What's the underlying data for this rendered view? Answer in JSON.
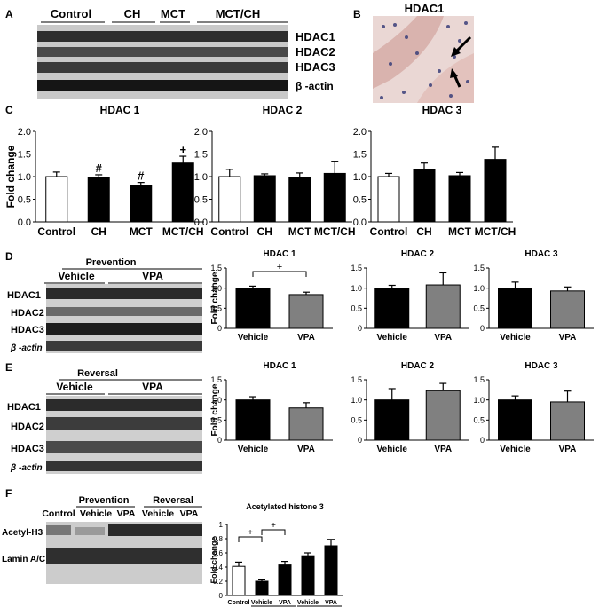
{
  "panels": {
    "A": {
      "letter": "A",
      "groups": [
        "Control",
        "CH",
        "MCT",
        "MCT/CH"
      ],
      "bands": [
        "HDAC1",
        "HDAC2",
        "HDAC3",
        "β -actin"
      ]
    },
    "B": {
      "letter": "B",
      "title": "HDAC1"
    },
    "C": {
      "letter": "C"
    },
    "D": {
      "letter": "D",
      "group_header": "Prevention",
      "groups": [
        "Vehicle",
        "VPA"
      ],
      "bands": [
        "HDAC1",
        "HDAC2",
        "HDAC3",
        "β -actin"
      ]
    },
    "E": {
      "letter": "E",
      "group_header": "Reversal",
      "groups": [
        "Vehicle",
        "VPA"
      ],
      "bands": [
        "HDAC1",
        "HDAC2",
        "HDAC3",
        "β -actin"
      ]
    },
    "F": {
      "letter": "F",
      "headers": [
        "Prevention",
        "Reversal"
      ],
      "lanes": [
        "Control",
        "Vehicle",
        "VPA",
        "Vehicle",
        "VPA"
      ],
      "bands": [
        "Acetyl-H3",
        "Lamin A/C"
      ]
    }
  },
  "chart_data": [
    {
      "id": "C1",
      "type": "bar",
      "title": "HDAC 1",
      "ylabel": "Fold change",
      "ylim": [
        0,
        2.0
      ],
      "yticks": [
        "0.0",
        "0.5",
        "1.0",
        "1.5",
        "2.0"
      ],
      "categories": [
        "Control",
        "CH",
        "MCT",
        "MCT/CH"
      ],
      "values": [
        1.0,
        0.98,
        0.8,
        1.3
      ],
      "errors": [
        0.1,
        0.06,
        0.07,
        0.15
      ],
      "colors": [
        "#ffffff",
        "#000000",
        "#000000",
        "#000000"
      ],
      "marks": [
        "",
        "#",
        "#",
        "+"
      ]
    },
    {
      "id": "C2",
      "type": "bar",
      "title": "HDAC 2",
      "ylabel": "",
      "ylim": [
        0,
        2.0
      ],
      "yticks": [
        "0.0",
        "0.5",
        "1.0",
        "1.5",
        "2.0"
      ],
      "categories": [
        "Control",
        "CH",
        "MCT",
        "MCT/CH"
      ],
      "values": [
        1.0,
        1.02,
        0.98,
        1.07
      ],
      "errors": [
        0.16,
        0.04,
        0.1,
        0.27
      ],
      "colors": [
        "#ffffff",
        "#000000",
        "#000000",
        "#000000"
      ]
    },
    {
      "id": "C3",
      "type": "bar",
      "title": "HDAC 3",
      "ylabel": "",
      "ylim": [
        0,
        2.0
      ],
      "yticks": [
        "0.0",
        "0.5",
        "1.0",
        "1.5",
        "2.0"
      ],
      "categories": [
        "Control",
        "CH",
        "MCT",
        "MCT/CH"
      ],
      "values": [
        1.0,
        1.15,
        1.02,
        1.38
      ],
      "errors": [
        0.07,
        0.15,
        0.07,
        0.27
      ],
      "colors": [
        "#ffffff",
        "#000000",
        "#000000",
        "#000000"
      ]
    },
    {
      "id": "D1",
      "type": "bar",
      "title": "HDAC 1",
      "ylabel": "Fold change",
      "ylim": [
        0,
        1.5
      ],
      "yticks": [
        "0",
        "0.5",
        "1.0",
        "1.5"
      ],
      "categories": [
        "Vehicle",
        "VPA"
      ],
      "values": [
        1.0,
        0.84
      ],
      "errors": [
        0.05,
        0.06
      ],
      "colors": [
        "#000000",
        "#808080"
      ],
      "bracket": {
        "from": 0,
        "to": 1,
        "label": "+"
      }
    },
    {
      "id": "D2",
      "type": "bar",
      "title": "HDAC 2",
      "ylabel": "",
      "ylim": [
        0,
        1.5
      ],
      "yticks": [
        "0",
        "0.5",
        "1.0",
        "1.5"
      ],
      "categories": [
        "Vehicle",
        "VPA"
      ],
      "values": [
        1.0,
        1.08
      ],
      "errors": [
        0.07,
        0.3
      ],
      "colors": [
        "#000000",
        "#808080"
      ]
    },
    {
      "id": "D3",
      "type": "bar",
      "title": "HDAC 3",
      "ylabel": "",
      "ylim": [
        0,
        1.5
      ],
      "yticks": [
        "0",
        "0.5",
        "1.0",
        "1.5"
      ],
      "categories": [
        "Vehicle",
        "VPA"
      ],
      "values": [
        1.0,
        0.93
      ],
      "errors": [
        0.15,
        0.1
      ],
      "colors": [
        "#000000",
        "#808080"
      ]
    },
    {
      "id": "E1",
      "type": "bar",
      "title": "HDAC 1",
      "ylabel": "Fold change",
      "ylim": [
        0,
        1.5
      ],
      "yticks": [
        "0",
        "0.5",
        "1.0",
        "1.5"
      ],
      "categories": [
        "Vehicle",
        "VPA"
      ],
      "values": [
        1.0,
        0.8
      ],
      "errors": [
        0.08,
        0.13
      ],
      "colors": [
        "#000000",
        "#808080"
      ]
    },
    {
      "id": "E2",
      "type": "bar",
      "title": "HDAC 2",
      "ylabel": "",
      "ylim": [
        0,
        1.5
      ],
      "yticks": [
        "0",
        "0.5",
        "1.0",
        "1.5"
      ],
      "categories": [
        "Vehicle",
        "VPA"
      ],
      "values": [
        1.0,
        1.23
      ],
      "errors": [
        0.28,
        0.18
      ],
      "colors": [
        "#000000",
        "#808080"
      ]
    },
    {
      "id": "E3",
      "type": "bar",
      "title": "HDAC 3",
      "ylabel": "",
      "ylim": [
        0,
        1.5
      ],
      "yticks": [
        "0",
        "0.5",
        "1.0",
        "1.5"
      ],
      "categories": [
        "Vehicle",
        "VPA"
      ],
      "values": [
        1.0,
        0.95
      ],
      "errors": [
        0.1,
        0.27
      ],
      "colors": [
        "#000000",
        "#808080"
      ]
    },
    {
      "id": "F1",
      "type": "bar",
      "title": "Acetylated histone 3",
      "ylabel": "Fold change",
      "ylim": [
        0,
        1.0
      ],
      "yticks": [
        "0",
        "0.2",
        "0.4",
        "0.6",
        "0.8",
        "1"
      ],
      "categories": [
        "Control",
        "Vehicle",
        "VPA",
        "Vehicle",
        "VPA"
      ],
      "values": [
        0.41,
        0.2,
        0.43,
        0.56,
        0.7
      ],
      "errors": [
        0.06,
        0.02,
        0.05,
        0.04,
        0.09
      ],
      "colors": [
        "#ffffff",
        "#000000",
        "#000000",
        "#000000",
        "#000000"
      ],
      "group_labels": [
        "Prevention",
        "Reversal"
      ],
      "brackets": [
        {
          "from": 0,
          "to": 1,
          "label": "+"
        },
        {
          "from": 1,
          "to": 2,
          "label": "+"
        }
      ]
    }
  ]
}
